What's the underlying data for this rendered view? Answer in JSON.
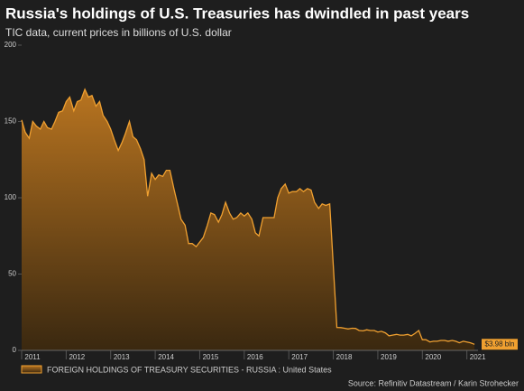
{
  "chart_data": {
    "type": "area",
    "title": "Russia's holdings of U.S. Treasuries has dwindled in past years",
    "subtitle": "TIC data, current prices in billions of U.S. dollar",
    "source": "Source: Refinitiv Datastream / Karin Strohecker",
    "x": [
      2011.0,
      2011.08,
      2011.17,
      2011.25,
      2011.33,
      2011.42,
      2011.5,
      2011.58,
      2011.67,
      2011.75,
      2011.83,
      2011.92,
      2012.0,
      2012.08,
      2012.17,
      2012.25,
      2012.33,
      2012.42,
      2012.5,
      2012.58,
      2012.67,
      2012.75,
      2012.83,
      2012.92,
      2013.0,
      2013.08,
      2013.17,
      2013.25,
      2013.33,
      2013.42,
      2013.5,
      2013.58,
      2013.67,
      2013.75,
      2013.83,
      2013.92,
      2014.0,
      2014.08,
      2014.17,
      2014.25,
      2014.33,
      2014.42,
      2014.5,
      2014.58,
      2014.67,
      2014.75,
      2014.83,
      2014.92,
      2015.0,
      2015.08,
      2015.17,
      2015.25,
      2015.33,
      2015.42,
      2015.5,
      2015.58,
      2015.67,
      2015.75,
      2015.83,
      2015.92,
      2016.0,
      2016.08,
      2016.17,
      2016.25,
      2016.33,
      2016.42,
      2016.5,
      2016.58,
      2016.67,
      2016.75,
      2016.83,
      2016.92,
      2017.0,
      2017.08,
      2017.17,
      2017.25,
      2017.33,
      2017.42,
      2017.5,
      2017.58,
      2017.67,
      2017.75,
      2017.83,
      2017.92,
      2018.08,
      2018.17,
      2018.25,
      2018.33,
      2018.42,
      2018.5,
      2018.58,
      2018.67,
      2018.75,
      2018.83,
      2018.92,
      2019.0,
      2019.08,
      2019.17,
      2019.25,
      2019.33,
      2019.42,
      2019.5,
      2019.58,
      2019.67,
      2019.75,
      2019.83,
      2019.92,
      2020.0,
      2020.08,
      2020.17,
      2020.25,
      2020.33,
      2020.42,
      2020.5,
      2020.58,
      2020.67,
      2020.75,
      2020.83,
      2020.92,
      2021.0,
      2021.08,
      2021.17
    ],
    "series": [
      {
        "name": "FOREIGN HOLDINGS OF TREASURY SECURITIES - RUSSIA : United States",
        "color": "#f0a030",
        "values": [
          151,
          143,
          139,
          150,
          147,
          145,
          150,
          146,
          145,
          150,
          156,
          157,
          163,
          166,
          157,
          163,
          164,
          171,
          166,
          167,
          160,
          163,
          154,
          150,
          145,
          138,
          131,
          136,
          142,
          150,
          140,
          138,
          132,
          125,
          101,
          116,
          112,
          115,
          114,
          118,
          118,
          106,
          96,
          86,
          82,
          70,
          70,
          68,
          71,
          74,
          82,
          90,
          89,
          84,
          89,
          97,
          90,
          86,
          87,
          90,
          88,
          90,
          86,
          77,
          75,
          87,
          87,
          87,
          87,
          100,
          106,
          109,
          103,
          104,
          104,
          106,
          104,
          106,
          105,
          97,
          93,
          96,
          95,
          96,
          15,
          14.9,
          14.5,
          14,
          14.5,
          14.4,
          13,
          12.8,
          13.5,
          13,
          13,
          12,
          12.5,
          11.5,
          9.5,
          10,
          10.5,
          10,
          10,
          10.5,
          9.5,
          11,
          13,
          7,
          7,
          5.5,
          6,
          6,
          6.5,
          6.5,
          6,
          6.5,
          6,
          5,
          6,
          5.5,
          5,
          3.98
        ]
      }
    ],
    "last_label": {
      "value": 3.98,
      "label": "$3.98 bln"
    },
    "xlim": [
      2011,
      2021.25
    ],
    "xticks": [
      2011,
      2012,
      2013,
      2014,
      2015,
      2016,
      2017,
      2018,
      2019,
      2020,
      2021
    ],
    "ylim": [
      0,
      200
    ],
    "yticks": [
      0,
      50,
      100,
      150,
      200
    ]
  }
}
